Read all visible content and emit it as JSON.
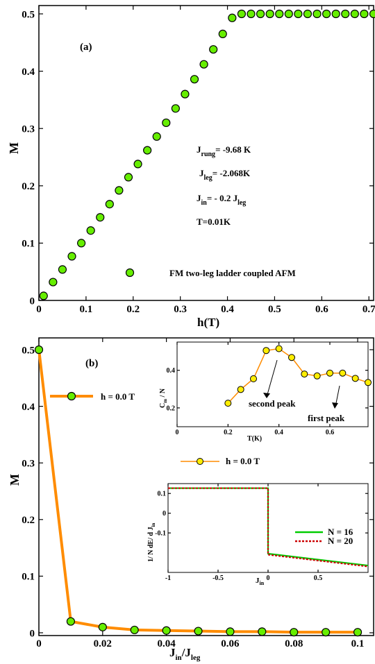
{
  "chart_data": [
    {
      "id": "a",
      "type": "scatter",
      "panel_label": "(a)",
      "xlabel": "h(T)",
      "ylabel": "M",
      "xlim": [
        0,
        0.71
      ],
      "ylim": [
        0,
        0.52
      ],
      "xticks": [
        "0",
        "0.1",
        "0.2",
        "0.3",
        "0.4",
        "0.5",
        "0.6",
        "0.7"
      ],
      "yticks": [
        "0",
        "0.1",
        "0.2",
        "0.3",
        "0.4",
        "0.5"
      ],
      "marker_color": "#66ee00",
      "x": [
        0.01,
        0.03,
        0.05,
        0.07,
        0.09,
        0.11,
        0.13,
        0.15,
        0.17,
        0.19,
        0.21,
        0.23,
        0.25,
        0.27,
        0.29,
        0.31,
        0.33,
        0.35,
        0.37,
        0.39,
        0.41,
        0.43,
        0.45,
        0.47,
        0.49,
        0.51,
        0.53,
        0.55,
        0.57,
        0.59,
        0.61,
        0.63,
        0.65,
        0.67,
        0.69,
        0.71
      ],
      "y": [
        0.008,
        0.032,
        0.054,
        0.077,
        0.1,
        0.122,
        0.145,
        0.168,
        0.192,
        0.215,
        0.238,
        0.262,
        0.286,
        0.31,
        0.335,
        0.36,
        0.386,
        0.412,
        0.438,
        0.465,
        0.493,
        0.5,
        0.5,
        0.5,
        0.5,
        0.5,
        0.5,
        0.5,
        0.5,
        0.5,
        0.5,
        0.5,
        0.5,
        0.5,
        0.5,
        0.5
      ],
      "params": {
        "line1": "J",
        "line1_sub": "rung",
        "line1_val": "= -9.68 K",
        "line2": "J",
        "line2_sub": "leg",
        "line2_val": "= -2.068K",
        "line3": "J",
        "line3_sub": "in",
        "line3_val": "= - 0.2 J",
        "line3_sub2": "leg",
        "line4": "T=0.01K"
      },
      "legend": {
        "label": "FM two-leg ladder coupled AFM"
      }
    },
    {
      "id": "b",
      "type": "line",
      "panel_label": "(b)",
      "xlabel_main": "J",
      "xlabel_sub1": "in",
      "xlabel_mid": "/J",
      "xlabel_sub2": "leg",
      "ylabel": "M",
      "xlim": [
        0,
        0.105
      ],
      "ylim": [
        0,
        0.51
      ],
      "xticks": [
        "0",
        "0.02",
        "0.04",
        "0.06",
        "0.08",
        "0.1"
      ],
      "yticks": [
        "0",
        "0.1",
        "0.2",
        "0.3",
        "0.4",
        "0.5"
      ],
      "series": [
        {
          "name": "h = 0.0 T",
          "line_color": "#ff8c00",
          "marker_color": "#66ee00",
          "x": [
            0,
            0.01,
            0.02,
            0.03,
            0.04,
            0.05,
            0.06,
            0.07,
            0.08,
            0.09,
            0.1
          ],
          "y": [
            0.5,
            0.02,
            0.01,
            0.005,
            0.004,
            0.003,
            0.002,
            0.002,
            0.001,
            0.001,
            0.001
          ]
        }
      ]
    },
    {
      "id": "inset1",
      "type": "line",
      "ylabel_main": "C",
      "ylabel_sub": "m",
      "ylabel_rest": " / N",
      "xlabel": "T(K)",
      "xlim": [
        0,
        0.75
      ],
      "ylim": [
        0.1,
        0.55
      ],
      "xticks": [
        "0",
        "0.2",
        "0.4",
        "0.6"
      ],
      "yticks": [
        "0.2",
        "0.4"
      ],
      "series": [
        {
          "name": "h = 0.0 T",
          "line_color": "#ff8c00",
          "marker_color": "#ffee00",
          "x": [
            0.2,
            0.25,
            0.3,
            0.35,
            0.4,
            0.45,
            0.5,
            0.55,
            0.6,
            0.65,
            0.7,
            0.75
          ],
          "y": [
            0.225,
            0.298,
            0.355,
            0.505,
            0.515,
            0.468,
            0.38,
            0.37,
            0.385,
            0.385,
            0.357,
            0.335
          ]
        }
      ],
      "annotations": [
        {
          "text": "second peak",
          "x": 0.4,
          "y": 0.515
        },
        {
          "text": "first peak",
          "x": 0.65,
          "y": 0.385
        }
      ]
    },
    {
      "id": "inset2",
      "type": "line",
      "ylabel_main": "1/ N dE/ d J",
      "ylabel_sub": "in",
      "xlabel_main": "J",
      "xlabel_sub": "in",
      "xlim": [
        -1,
        1
      ],
      "ylim": [
        -0.3,
        0.15
      ],
      "xticks": [
        "-1",
        "-0.5",
        "0",
        "0.5"
      ],
      "yticks": [
        "0.1",
        "0",
        "-0.1"
      ],
      "series": [
        {
          "name": "N = 16",
          "color": "#00cc00",
          "dash": false,
          "x": [
            -1,
            0,
            0,
            1
          ],
          "y": [
            0.127,
            0.127,
            -0.205,
            -0.265
          ]
        },
        {
          "name": "N = 20",
          "color": "#cc0000",
          "dash": true,
          "x": [
            -1,
            0,
            0,
            1
          ],
          "y": [
            0.127,
            0.127,
            -0.21,
            -0.27
          ]
        }
      ]
    }
  ]
}
